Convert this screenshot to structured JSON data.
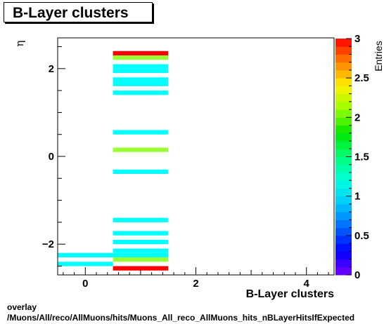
{
  "title": "B-Layer clusters",
  "footer": {
    "line1": "overlay",
    "line2": "/Muons/All/reco/AllMuons/hits/Muons_All_reco_AllMuons_hits_nBLayerHitsIfExpected"
  },
  "colors": {
    "frame": "#000000",
    "background": "#ffffff"
  },
  "chart_data": {
    "type": "heatmap",
    "title": "B-Layer clusters",
    "xlabel": "B-Layer clusters",
    "ylabel": "η",
    "zlabel": "Entries",
    "xlim": [
      -0.5,
      4.5
    ],
    "ylim": [
      -2.7,
      2.7
    ],
    "zlim": [
      0,
      3
    ],
    "x_ticks": [
      0,
      2,
      4
    ],
    "y_ticks": [
      -2,
      0,
      2
    ],
    "z_ticks": [
      0,
      0.5,
      1,
      1.5,
      2,
      2.5,
      3
    ],
    "bin_height": 0.1,
    "bins": [
      {
        "x": 0,
        "y": -2.45,
        "z": 1
      },
      {
        "x": 0,
        "y": -2.25,
        "z": 1
      },
      {
        "x": 1,
        "y": -2.55,
        "z": 3
      },
      {
        "x": 1,
        "y": -2.35,
        "z": 2
      },
      {
        "x": 1,
        "y": -2.25,
        "z": 1
      },
      {
        "x": 1,
        "y": -2.15,
        "z": 1
      },
      {
        "x": 1,
        "y": -1.95,
        "z": 1
      },
      {
        "x": 1,
        "y": -1.75,
        "z": 1
      },
      {
        "x": 1,
        "y": -1.45,
        "z": 1
      },
      {
        "x": 1,
        "y": -0.35,
        "z": 1
      },
      {
        "x": 1,
        "y": 0.15,
        "z": 2
      },
      {
        "x": 1,
        "y": 0.55,
        "z": 1
      },
      {
        "x": 1,
        "y": 1.45,
        "z": 1
      },
      {
        "x": 1,
        "y": 1.65,
        "z": 1
      },
      {
        "x": 1,
        "y": 1.75,
        "z": 1
      },
      {
        "x": 1,
        "y": 1.95,
        "z": 1
      },
      {
        "x": 1,
        "y": 2.05,
        "z": 1
      },
      {
        "x": 1,
        "y": 2.25,
        "z": 2
      },
      {
        "x": 1,
        "y": 2.35,
        "z": 3
      }
    ]
  }
}
